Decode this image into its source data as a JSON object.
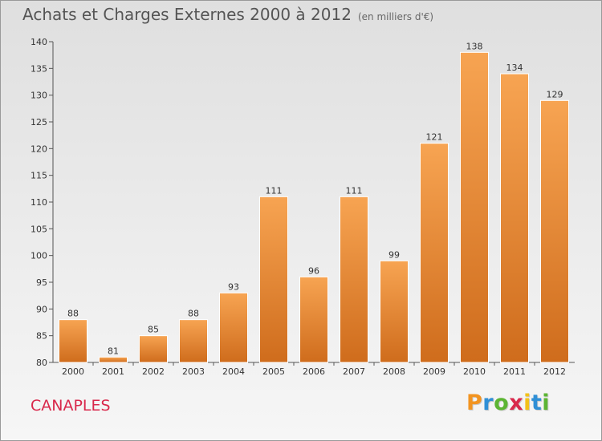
{
  "title": "Achats et Charges Externes 2000 à 2012",
  "unit": "(en milliers d'€)",
  "commune": "CANAPLES",
  "logo": {
    "letters": [
      "P",
      "r",
      "o",
      "x",
      "i",
      "t",
      "i"
    ],
    "colors": [
      "#f29421",
      "#2f8fd6",
      "#5cb533",
      "#d9284b",
      "#f2c11a",
      "#2f8fd6",
      "#5cb533"
    ]
  },
  "colors": {
    "bar_top": "#f7a452",
    "bar_bottom": "#cf6c1c",
    "bar_stroke": "#ffffff"
  },
  "chart_data": {
    "type": "bar",
    "title": "Achats et Charges Externes 2000 à 2012",
    "categories": [
      "2000",
      "2001",
      "2002",
      "2003",
      "2004",
      "2005",
      "2006",
      "2007",
      "2008",
      "2009",
      "2010",
      "2011",
      "2012"
    ],
    "values": [
      88,
      81,
      85,
      88,
      93,
      111,
      96,
      111,
      99,
      121,
      138,
      134,
      129
    ],
    "ylim": [
      80,
      140
    ],
    "yticks": [
      80,
      85,
      90,
      95,
      100,
      105,
      110,
      115,
      120,
      125,
      130,
      135,
      140
    ],
    "grid": false,
    "legend": "none"
  }
}
